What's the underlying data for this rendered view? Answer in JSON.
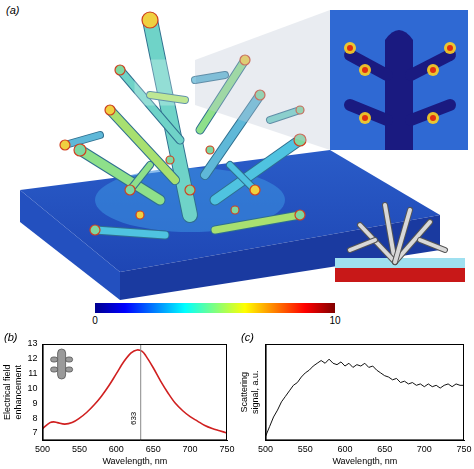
{
  "panel_a": {
    "label": "(a)",
    "colorbar": {
      "range": [
        0,
        10
      ],
      "ticks": [
        0,
        10
      ]
    }
  },
  "chart_data": [
    {
      "type": "line",
      "title": "(b)",
      "xlabel": "Wavelength, nm",
      "ylabel": "Electrical field enhancement",
      "x": [
        500,
        510,
        515,
        520,
        530,
        540,
        550,
        560,
        570,
        580,
        590,
        600,
        610,
        620,
        628,
        635,
        640,
        650,
        660,
        670,
        680,
        690,
        700,
        710,
        720,
        730,
        740,
        750
      ],
      "values": [
        7.3,
        7.7,
        7.75,
        7.7,
        7.6,
        7.7,
        8.0,
        8.4,
        8.9,
        9.5,
        10.2,
        11.0,
        11.8,
        12.4,
        12.6,
        12.5,
        12.2,
        11.4,
        10.5,
        9.7,
        9.0,
        8.5,
        8.1,
        7.8,
        7.5,
        7.3,
        7.15,
        7.0
      ],
      "color": "#d02020",
      "xlim": [
        500,
        750
      ],
      "xticks": [
        500,
        550,
        600,
        650,
        700,
        750
      ],
      "ylim": [
        6.5,
        13
      ],
      "yticks": [
        7,
        8,
        9,
        10,
        11,
        12,
        13
      ],
      "grid": false,
      "annotations": [
        {
          "x": 633,
          "text": "633"
        }
      ]
    },
    {
      "type": "line",
      "title": "(c)",
      "xlabel": "Wavelength, nm",
      "ylabel": "Scattering signal, a.u.",
      "x": [
        500,
        505,
        510,
        515,
        520,
        525,
        530,
        535,
        540,
        545,
        550,
        555,
        560,
        565,
        570,
        575,
        580,
        585,
        590,
        595,
        600,
        605,
        610,
        615,
        620,
        625,
        630,
        635,
        640,
        645,
        650,
        655,
        660,
        665,
        670,
        675,
        680,
        685,
        690,
        695,
        700,
        705,
        710,
        715,
        720,
        725,
        730,
        735,
        740,
        745,
        750
      ],
      "values": [
        0.33,
        0.4,
        0.47,
        0.52,
        0.58,
        0.62,
        0.66,
        0.7,
        0.72,
        0.76,
        0.79,
        0.81,
        0.84,
        0.86,
        0.88,
        0.86,
        0.89,
        0.86,
        0.85,
        0.87,
        0.84,
        0.86,
        0.83,
        0.85,
        0.84,
        0.86,
        0.83,
        0.84,
        0.81,
        0.79,
        0.77,
        0.76,
        0.74,
        0.75,
        0.72,
        0.73,
        0.71,
        0.72,
        0.7,
        0.71,
        0.69,
        0.71,
        0.69,
        0.7,
        0.68,
        0.7,
        0.71,
        0.69,
        0.71,
        0.7,
        0.7
      ],
      "color": "#111111",
      "xlim": [
        500,
        750
      ],
      "xticks": [
        500,
        550,
        600,
        650,
        700,
        750
      ],
      "ylim": [
        0.3,
        1.0
      ],
      "tick_labels": "x",
      "grid": false
    }
  ]
}
